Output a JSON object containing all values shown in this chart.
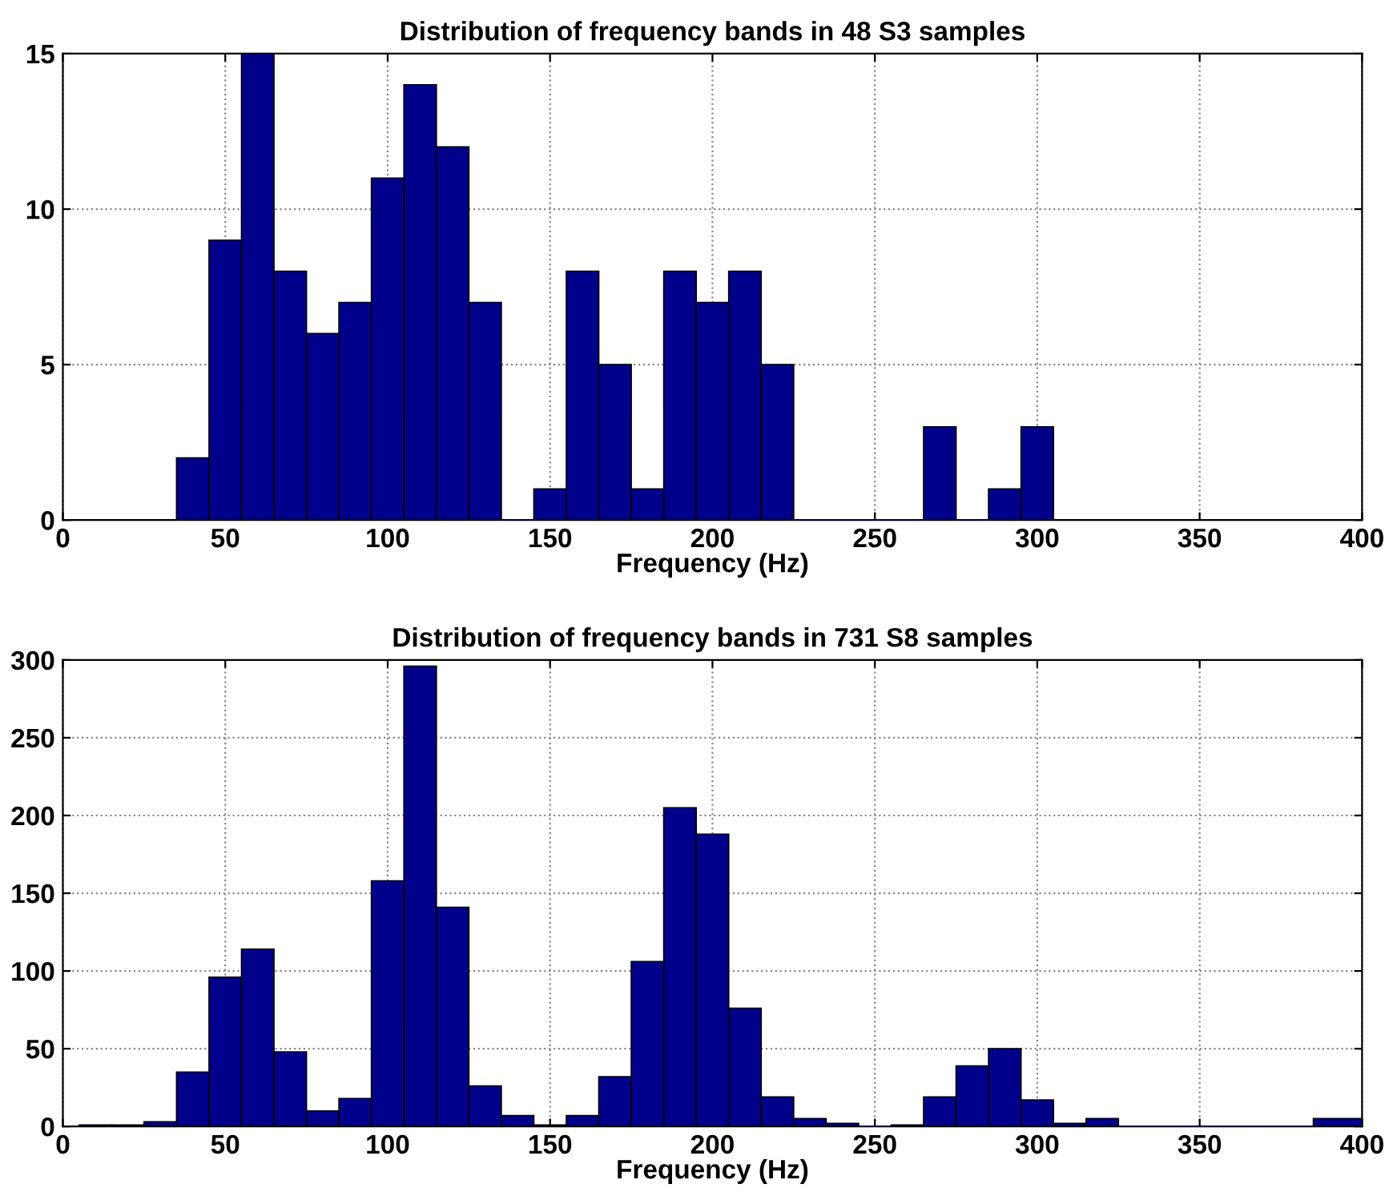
{
  "chart_data": [
    {
      "type": "histogram",
      "title": "Distribution of frequency bands in 48 S3 samples",
      "xlabel": "Frequency (Hz)",
      "color": "#00008b",
      "bins": [
        35,
        45,
        55,
        65,
        75,
        85,
        95,
        105,
        115,
        125,
        135,
        145,
        155,
        165,
        175,
        185,
        195,
        205,
        215,
        225,
        235,
        245,
        255,
        265,
        275,
        285,
        295,
        305
      ],
      "values": [
        2,
        9,
        15,
        8,
        6,
        7,
        11,
        14,
        12,
        7,
        0,
        1,
        8,
        5,
        1,
        8,
        7,
        8,
        5,
        0,
        0,
        0,
        0,
        3,
        0,
        1,
        3
      ],
      "xlim": [
        0,
        400
      ],
      "xticks": [
        0,
        50,
        100,
        150,
        200,
        250,
        300,
        350,
        400
      ],
      "ylim": [
        0,
        15
      ],
      "yticks": [
        0,
        5,
        10,
        15
      ],
      "grid": true
    },
    {
      "type": "histogram",
      "title": "Distribution of frequency bands in 731 S8 samples",
      "xlabel": "Frequency (Hz)",
      "color": "#00008b",
      "bins": [
        5,
        15,
        25,
        35,
        45,
        55,
        65,
        75,
        85,
        95,
        105,
        115,
        125,
        135,
        145,
        155,
        165,
        175,
        185,
        195,
        205,
        215,
        225,
        235,
        245,
        255,
        265,
        275,
        285,
        295,
        305,
        315,
        325,
        335,
        345,
        355,
        365,
        375,
        385,
        400
      ],
      "values": [
        1,
        1,
        3,
        35,
        96,
        114,
        48,
        10,
        18,
        158,
        296,
        141,
        26,
        7,
        1,
        7,
        32,
        106,
        205,
        188,
        76,
        19,
        5,
        2,
        0,
        1,
        19,
        39,
        50,
        17,
        2,
        5,
        0,
        0,
        0,
        0,
        0,
        0,
        5
      ],
      "xlim": [
        0,
        400
      ],
      "xticks": [
        0,
        50,
        100,
        150,
        200,
        250,
        300,
        350,
        400
      ],
      "ylim": [
        0,
        300
      ],
      "yticks": [
        0,
        50,
        100,
        150,
        200,
        250,
        300
      ],
      "grid": true
    }
  ]
}
